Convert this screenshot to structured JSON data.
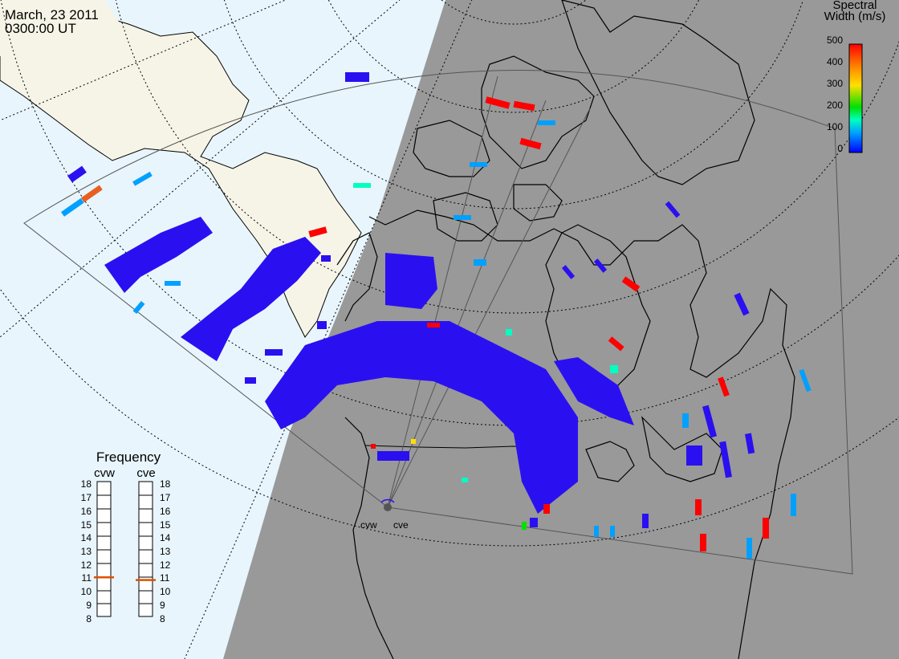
{
  "header": {
    "date": "March, 23 2011",
    "time": "0300:00 UT"
  },
  "legend": {
    "title_line1": "Spectral",
    "title_line2": "Width (m/s)",
    "ticks": [
      "500",
      "400",
      "300",
      "200",
      "100",
      "0"
    ],
    "scale_min": 0,
    "scale_max": 500,
    "colors": [
      "#0000ff",
      "#00a0ff",
      "#00ffc0",
      "#00e000",
      "#ffe000",
      "#ff8000",
      "#ff0000"
    ]
  },
  "frequency_panel": {
    "title": "Frequency",
    "radars": [
      {
        "code": "cvw",
        "frequency_mhz": 10.9
      },
      {
        "code": "cve",
        "frequency_mhz": 10.7
      }
    ],
    "scale": [
      "18",
      "17",
      "16",
      "15",
      "14",
      "13",
      "12",
      "11",
      "10",
      "9",
      "8"
    ],
    "marker_color": "#e05000"
  },
  "sites": {
    "west_label": "cvw",
    "east_label": "cve"
  },
  "colors": {
    "ocean": "#e8f5fc",
    "land_day": "#f6f4e6",
    "night_shade": "#999999",
    "scatter": "#2a10f0",
    "coast": "#000000"
  }
}
